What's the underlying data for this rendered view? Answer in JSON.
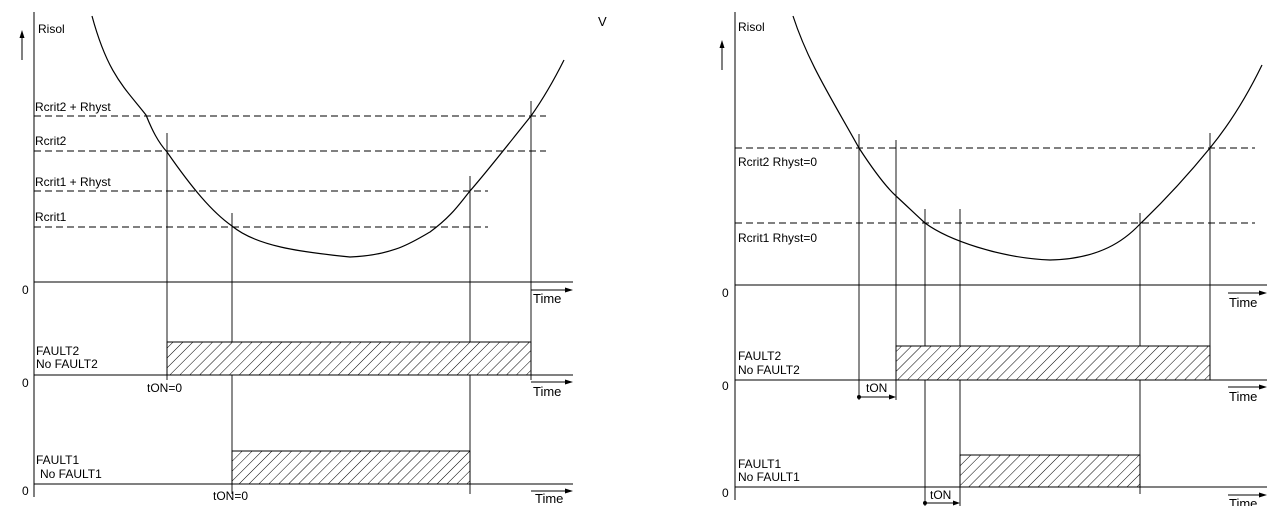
{
  "marker": "V",
  "left": {
    "y_label": "Risol",
    "thresholds": [
      {
        "label": "Rcrit2 + Rhyst"
      },
      {
        "label": "Rcrit2"
      },
      {
        "label": "Rcrit1 + Rhyst"
      },
      {
        "label": "Rcrit1"
      }
    ],
    "zero_label": "0",
    "time_label": "Time",
    "fault2": {
      "on_label": "FAULT2",
      "off_label": "No FAULT2",
      "delay_label": "tON=0"
    },
    "fault1": {
      "on_label": "FAULT1",
      "off_label": "No FAULT1",
      "delay_label": "tON=0"
    }
  },
  "right": {
    "y_label": "Risol",
    "thresholds": [
      {
        "label": "Rcrit2  Rhyst=0"
      },
      {
        "label": "Rcrit1  Rhyst=0"
      }
    ],
    "zero_label": "0",
    "time_label": "Time",
    "fault2": {
      "on_label": "FAULT2",
      "off_label": "No FAULT2",
      "delay_label": "tON"
    },
    "fault1": {
      "on_label": "FAULT1",
      "off_label": "No FAULT1",
      "delay_label": "tON"
    }
  }
}
